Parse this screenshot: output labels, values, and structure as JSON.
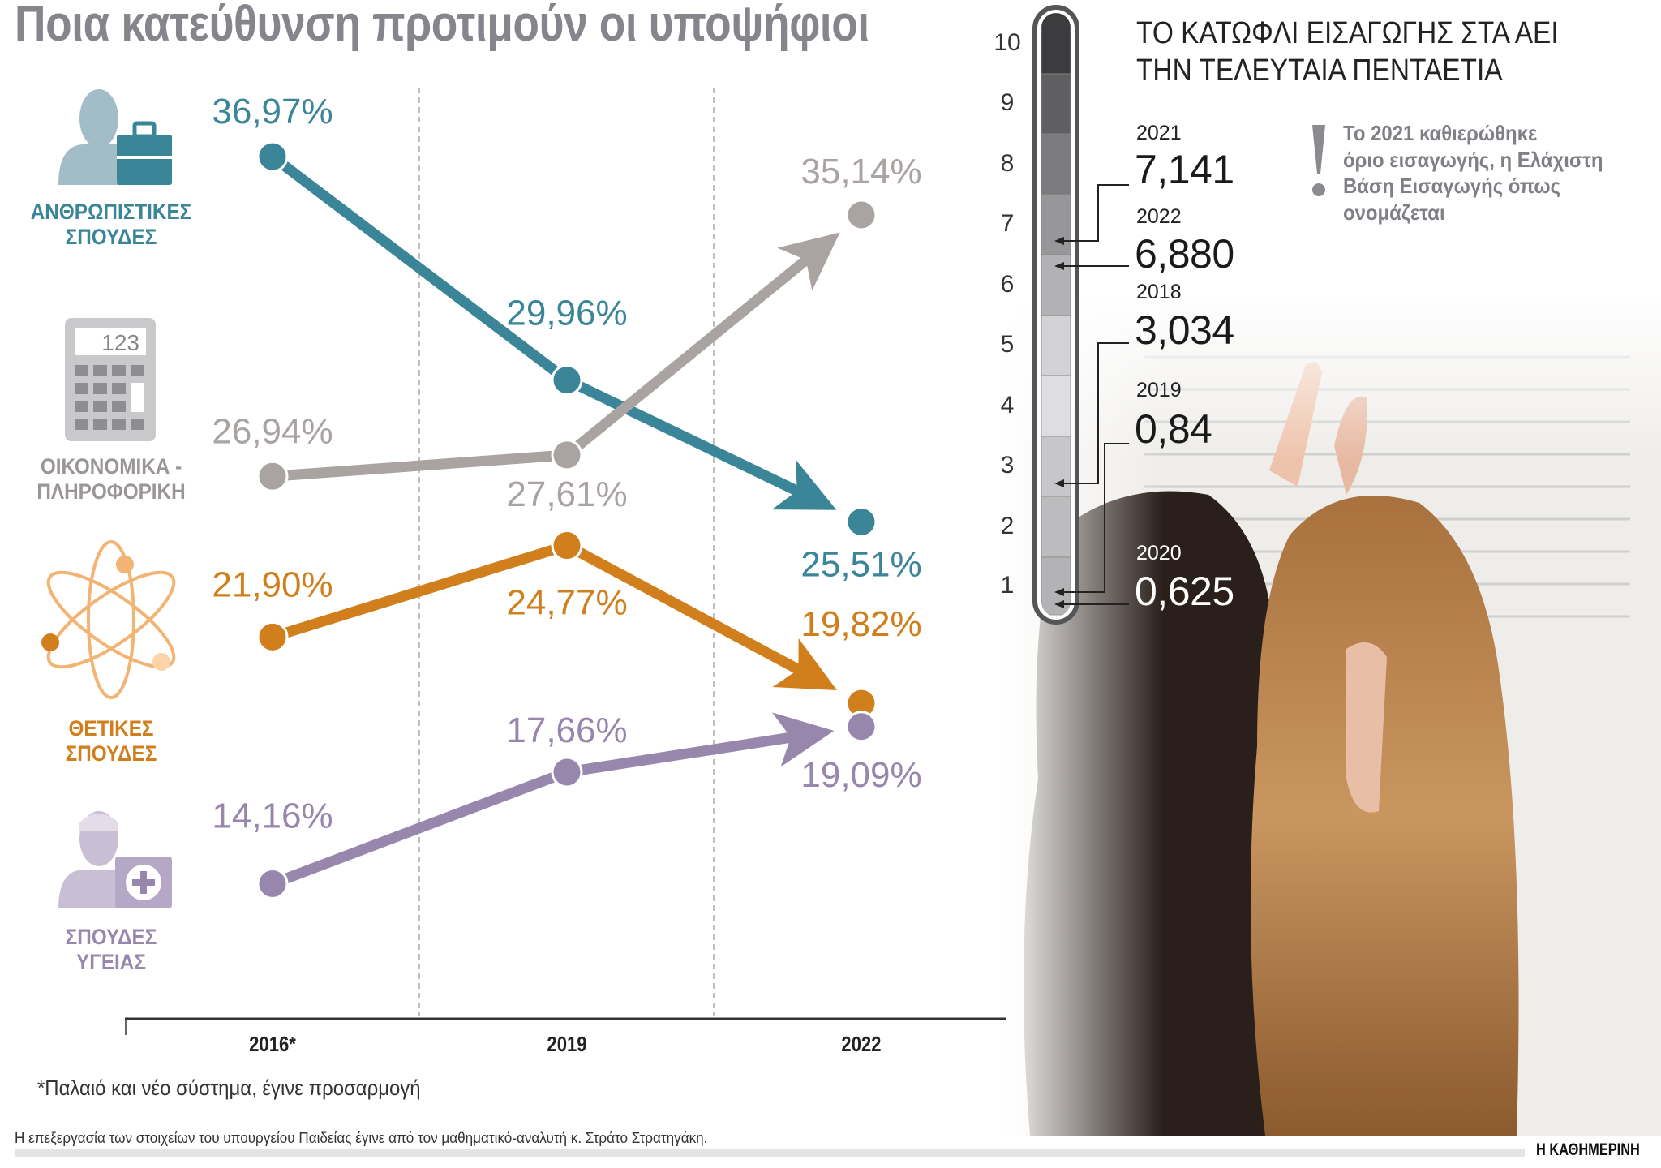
{
  "title": "Ποια κατεύθυνση προτιμούν οι υποψήφιοι",
  "categories": [
    {
      "lines": [
        "ΑΝΘΡΩΠΙΣΤΙΚΕΣ",
        "ΣΠΟΥΔΕΣ"
      ],
      "icon": "person-briefcase-icon",
      "color": "#3a8597"
    },
    {
      "lines": [
        "ΟΙΚΟΝΟΜΙΚΑ -",
        "ΠΛΗΡΟΦΟΡΙΚΗ"
      ],
      "icon": "calculator-icon",
      "color": "#a9a3a2",
      "display": "123"
    },
    {
      "lines": [
        "ΘΕΤΙΚΕΣ",
        "ΣΠΟΥΔΕΣ"
      ],
      "icon": "atom-icon",
      "color": "#d07f1c"
    },
    {
      "lines": [
        "ΣΠΟΥΔΕΣ",
        "ΥΓΕΙΑΣ"
      ],
      "icon": "person-medical-kit-icon",
      "color": "#9887ad"
    }
  ],
  "chart_data": {
    "type": "line",
    "x": [
      "2016*",
      "2019",
      "2022"
    ],
    "series": [
      {
        "name": "ΑΝΘΡΩΠΙΣΤΙΚΕΣ ΣΠΟΥΔΕΣ",
        "color": "#3a8597",
        "values": [
          36.97,
          29.96,
          25.51
        ],
        "labels": [
          "36,97%",
          "29,96%",
          "25,51%"
        ]
      },
      {
        "name": "ΟΙΚΟΝΟΜΙΚΑ - ΠΛΗΡΟΦΟΡΙΚΗ",
        "color": "#a9a3a2",
        "values": [
          26.94,
          27.61,
          35.14
        ],
        "labels": [
          "26,94%",
          "27,61%",
          "35,14%"
        ]
      },
      {
        "name": "ΘΕΤΙΚΕΣ ΣΠΟΥΔΕΣ",
        "color": "#d07f1c",
        "values": [
          21.9,
          24.77,
          19.82
        ],
        "labels": [
          "21,90%",
          "24,77%",
          "19,82%"
        ]
      },
      {
        "name": "ΣΠΟΥΔΕΣ ΥΓΕΙΑΣ",
        "color": "#9887ad",
        "values": [
          14.16,
          17.66,
          19.09
        ],
        "labels": [
          "14,16%",
          "17,66%",
          "19,09%"
        ]
      }
    ],
    "xlabel": "",
    "ylabel": "",
    "grid": "vertical dashed",
    "last_segment_arrow": true
  },
  "footnote": "*Παλαιό και νέο σύστημα, έγινε προσαρμογή",
  "source": "Η επεξεργασία των στοιχείων του υπουργείου Παιδείας έγινε από τον μαθηματικό-αναλυτή κ. Στράτο Στρατηγάκη.",
  "brand": "Η ΚΑΘΗΜΕΡΙΝΗ",
  "threshold": {
    "title_lines": [
      "ΤΟ ΚΑΤΩΦΛΙ ΕΙΣΑΓΩΓΗΣ ΣΤΑ ΑΕΙ",
      "ΤΗΝ ΤΕΛΕΥΤΑΙΑ ΠΕΝΤΑΕΤΙΑ"
    ],
    "scale": [
      "10",
      "9",
      "8",
      "7",
      "6",
      "5",
      "4",
      "3",
      "2",
      "1"
    ],
    "entries": [
      {
        "year": "2021",
        "value": "7,141",
        "number": 7.141
      },
      {
        "year": "2022",
        "value": "6,880",
        "number": 6.88
      },
      {
        "year": "2018",
        "value": "3,034",
        "number": 3.034
      },
      {
        "year": "2019",
        "value": "0,84",
        "number": 0.84
      },
      {
        "year": "2020",
        "value": "0,625",
        "number": 0.625
      }
    ],
    "note_icon": "exclamation-icon",
    "note_lines": [
      "Το 2021 καθιερώθηκε",
      "όριο εισαγωγής, η Ελάχιστη",
      "Βάση Εισαγωγής όπως",
      "ονομάζεται"
    ]
  }
}
